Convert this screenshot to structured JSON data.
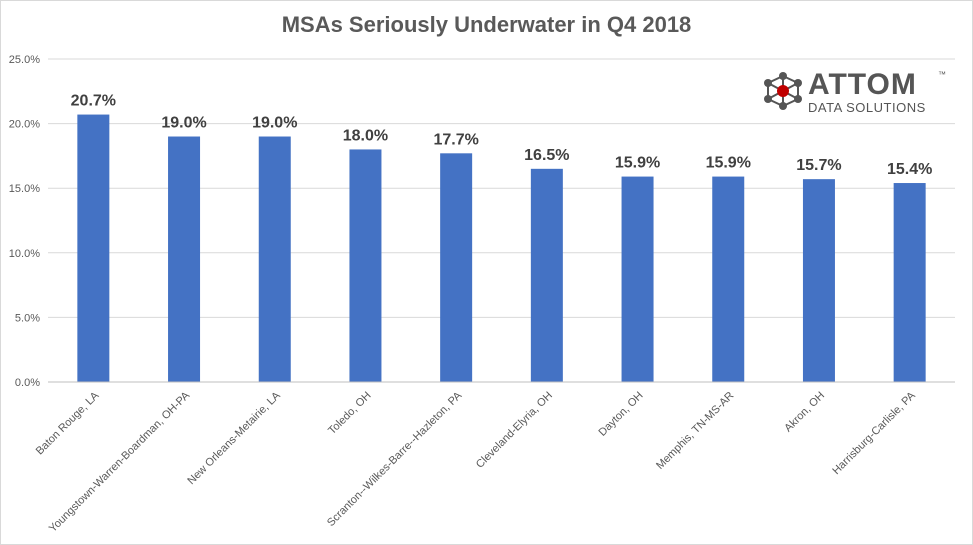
{
  "chart_data": {
    "type": "bar",
    "title": "MSAs Seriously Underwater in Q4 2018",
    "categories": [
      "Baton Rouge, LA",
      "Youngstown-Warren-Boardman, OH-PA",
      "New Orleans-Metairie, LA",
      "Toledo, OH",
      "Scranton--Wilkes-Barre--Hazleton, PA",
      "Cleveland-Elyria, OH",
      "Dayton, OH",
      "Memphis, TN-MS-AR",
      "Akron, OH",
      "Harrisburg-Carlisle, PA"
    ],
    "values": [
      20.7,
      19.0,
      19.0,
      18.0,
      17.7,
      16.5,
      15.9,
      15.9,
      15.7,
      15.4
    ],
    "data_labels": [
      "20.7%",
      "19.0%",
      "19.0%",
      "18.0%",
      "17.7%",
      "16.5%",
      "15.9%",
      "15.9%",
      "15.7%",
      "15.4%"
    ],
    "ylim": [
      0,
      25
    ],
    "yticks": [
      0,
      5,
      10,
      15,
      20,
      25
    ],
    "ytick_labels": [
      "0.0%",
      "5.0%",
      "10.0%",
      "15.0%",
      "20.0%",
      "25.0%"
    ],
    "grid": true,
    "bar_color": "#4472c4",
    "xlabel": "",
    "ylabel": ""
  },
  "logo": {
    "word": "ATTOM",
    "tm": "™",
    "subtitle": "DATA SOLUTIONS",
    "accent_color": "#c00000",
    "icon": "molecule-icon"
  }
}
